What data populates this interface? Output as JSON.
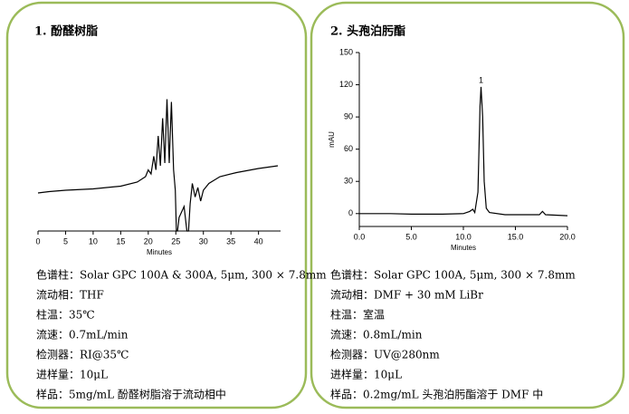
{
  "chart_data": [
    {
      "type": "line",
      "title": "1.  酚醛树脂",
      "x_label": "Minutes",
      "xlim": [
        0,
        44
      ],
      "xticks": [
        0,
        5,
        10,
        15,
        20,
        25,
        30,
        35,
        40
      ],
      "ylim": [
        0,
        100
      ],
      "color": "#000000",
      "x": [
        0,
        2,
        5,
        10,
        15,
        18,
        19.5,
        20,
        20.5,
        21,
        21.4,
        21.8,
        22.2,
        22.6,
        23,
        23.4,
        23.8,
        24.2,
        24.6,
        24.9,
        25.1,
        25.3,
        25.6,
        26.5,
        27,
        27.3,
        27.6,
        28,
        28.5,
        29,
        29.5,
        30,
        31,
        33,
        36,
        40,
        43.5
      ],
      "values": [
        28,
        29,
        30,
        31,
        33,
        36,
        40,
        45,
        42,
        55,
        45,
        70,
        48,
        83,
        50,
        97,
        50,
        95,
        45,
        30,
        0,
        0,
        10,
        18,
        0,
        0,
        20,
        35,
        25,
        32,
        22,
        30,
        35,
        40,
        43,
        46,
        48
      ]
    },
    {
      "type": "line",
      "title": "2.  头孢泊肟酯",
      "x_label": "Minutes",
      "y_label": "mAU",
      "peak_label": "1",
      "xlim": [
        0,
        20
      ],
      "xticks": [
        {
          "value": 0,
          "label": "0.0"
        },
        {
          "value": 5,
          "label": "5.0"
        },
        {
          "value": 10,
          "label": "10.0"
        },
        {
          "value": 15,
          "label": "15.0"
        },
        {
          "value": 20,
          "label": "20.0"
        }
      ],
      "ylim": [
        -12,
        150
      ],
      "yticks": [
        0,
        30,
        60,
        90,
        120,
        150
      ],
      "color": "#000000",
      "x": [
        0,
        3,
        5,
        8,
        10,
        10.6,
        10.9,
        11.1,
        11.4,
        11.6,
        11.7,
        11.85,
        12.0,
        12.2,
        12.5,
        14,
        17.3,
        17.6,
        17.9,
        20
      ],
      "values": [
        0,
        0,
        -0.5,
        -0.5,
        0,
        2,
        4,
        1,
        20,
        100,
        118,
        90,
        30,
        5,
        1,
        -1,
        -1,
        2,
        -1,
        -2
      ]
    }
  ],
  "panels": [
    {
      "specs": [
        "色谱柱：Solar GPC 100A & 300A, 5μm, 300 × 7.8mm",
        "流动相：THF",
        "柱温：35℃",
        "流速：0.7mL/min",
        "检测器：RI@35℃",
        "进样量：10μL",
        "样品：5mg/mL 酚醛树脂溶于流动相中"
      ]
    },
    {
      "specs": [
        "色谱柱：Solar GPC 100A, 5μm, 300 × 7.8mm",
        "流动相：DMF + 30 mM LiBr",
        "柱温：室温",
        "流速：0.8mL/min",
        "检测器：UV@280nm",
        "进样量：10μL",
        "样品：0.2mg/mL 头孢泊肟酯溶于 DMF 中"
      ]
    }
  ]
}
